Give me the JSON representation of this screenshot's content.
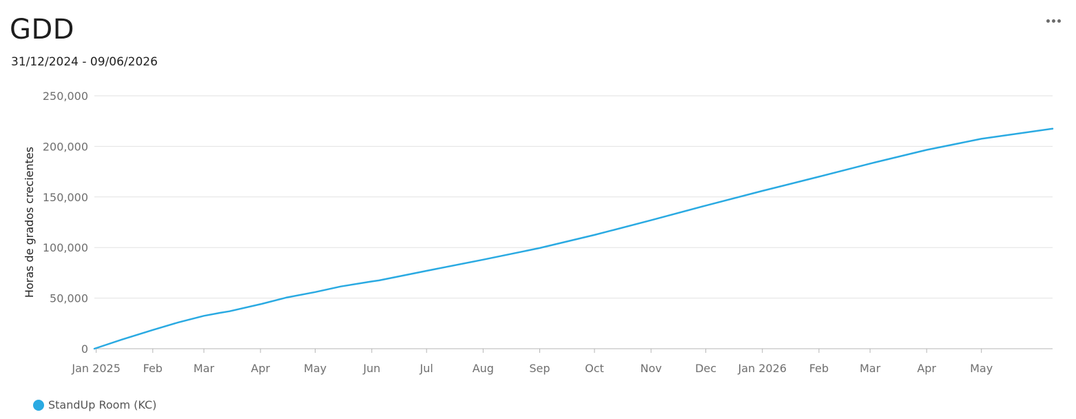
{
  "header": {
    "title": "GDD",
    "date_range": "31/12/2024 - 09/06/2026"
  },
  "menu": {
    "icon": "more-horizontal-icon"
  },
  "colors": {
    "series": "#2aaae2",
    "grid": "#e2e2e2",
    "axis": "#b5b5b5"
  },
  "chart_data": {
    "type": "line",
    "title": "GDD",
    "subtitle": "31/12/2024 - 09/06/2026",
    "xlabel": "",
    "ylabel": "Horas de grados crecientes",
    "xlim": [
      "2024-12-31",
      "2026-06-09"
    ],
    "ylim": [
      0,
      250000
    ],
    "y_ticks": [
      0,
      50000,
      100000,
      150000,
      200000,
      250000
    ],
    "y_tick_labels": [
      "0",
      "50,000",
      "100,000",
      "150,000",
      "200,000",
      "250,000"
    ],
    "x_ticks": [
      {
        "date": "2025-01-01",
        "label": "Jan 2025"
      },
      {
        "date": "2025-02-01",
        "label": "Feb"
      },
      {
        "date": "2025-03-01",
        "label": "Mar"
      },
      {
        "date": "2025-04-01",
        "label": "Apr"
      },
      {
        "date": "2025-05-01",
        "label": "May"
      },
      {
        "date": "2025-06-01",
        "label": "Jun"
      },
      {
        "date": "2025-07-01",
        "label": "Jul"
      },
      {
        "date": "2025-08-01",
        "label": "Aug"
      },
      {
        "date": "2025-09-01",
        "label": "Sep"
      },
      {
        "date": "2025-10-01",
        "label": "Oct"
      },
      {
        "date": "2025-11-01",
        "label": "Nov"
      },
      {
        "date": "2025-12-01",
        "label": "Dec"
      },
      {
        "date": "2026-01-01",
        "label": "Jan 2026"
      },
      {
        "date": "2026-02-01",
        "label": "Feb"
      },
      {
        "date": "2026-03-01",
        "label": "Mar"
      },
      {
        "date": "2026-04-01",
        "label": "Apr"
      },
      {
        "date": "2026-05-01",
        "label": "May"
      }
    ],
    "grid": true,
    "legend_position": "bottom-left",
    "series": [
      {
        "name": "StandUp Room (KC)",
        "x": [
          "2024-12-31",
          "2025-01-15",
          "2025-02-01",
          "2025-02-15",
          "2025-03-01",
          "2025-03-10",
          "2025-03-15",
          "2025-04-01",
          "2025-04-15",
          "2025-05-01",
          "2025-05-15",
          "2025-06-01",
          "2025-06-05",
          "2025-07-01",
          "2025-08-01",
          "2025-09-01",
          "2025-10-01",
          "2025-11-01",
          "2025-12-01",
          "2026-01-01",
          "2026-02-01",
          "2026-03-01",
          "2026-04-01",
          "2026-05-01",
          "2026-06-09"
        ],
        "y": [
          0,
          9000,
          18500,
          26000,
          32500,
          35500,
          37000,
          44000,
          50500,
          56000,
          61500,
          66500,
          67500,
          77000,
          88000,
          99500,
          112500,
          127000,
          141500,
          156000,
          170000,
          183000,
          196500,
          207500,
          217500
        ]
      }
    ]
  }
}
